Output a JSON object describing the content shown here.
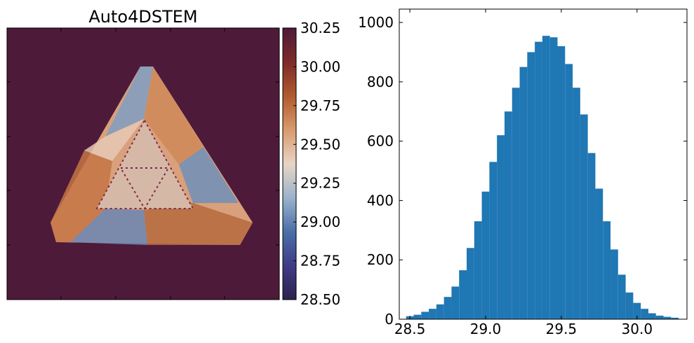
{
  "chart_data": [
    {
      "type": "heatmap",
      "title": "Auto4DSTEM",
      "xlabel": "",
      "ylabel": "",
      "colorbar": {
        "range": [
          28.5,
          30.25
        ],
        "ticks": [
          28.5,
          28.75,
          29.0,
          29.25,
          29.5,
          29.75,
          30.0,
          30.25
        ],
        "tick_labels": [
          "28.50",
          "28.75",
          "29.00",
          "29.25",
          "29.50",
          "29.75",
          "30.00",
          "30.25"
        ],
        "colormap": [
          "#2e214d",
          "#3f3c87",
          "#4a6fa8",
          "#9bb3cc",
          "#e8d5c5",
          "#d99a6c",
          "#b05a2e",
          "#7d2a2a",
          "#4e1a3a"
        ]
      },
      "background_color": "#4e1a3a",
      "grid": false
    },
    {
      "type": "bar",
      "title": "",
      "xlabel": "",
      "ylabel": "",
      "xlim": [
        28.43,
        30.33
      ],
      "ylim": [
        0,
        1045
      ],
      "x_ticks": [
        28.5,
        29.0,
        29.5,
        30.0
      ],
      "x_tick_labels": [
        "28.5",
        "29.0",
        "29.5",
        "30.0"
      ],
      "y_ticks": [
        0,
        200,
        400,
        600,
        800,
        1000
      ],
      "y_tick_labels": [
        "0",
        "200",
        "400",
        "600",
        "800",
        "1000"
      ],
      "bar_color": "#1f77b4",
      "grid": false,
      "x": [
        28.5,
        28.55,
        28.6,
        28.65,
        28.7,
        28.75,
        28.8,
        28.85,
        28.9,
        28.95,
        29.0,
        29.05,
        29.1,
        29.15,
        29.2,
        29.25,
        29.3,
        29.35,
        29.4,
        29.45,
        29.5,
        29.55,
        29.6,
        29.65,
        29.7,
        29.75,
        29.8,
        29.85,
        29.9,
        29.95,
        30.0,
        30.05,
        30.1,
        30.15,
        30.2,
        30.25
      ],
      "values": [
        10,
        15,
        25,
        35,
        50,
        75,
        110,
        165,
        240,
        330,
        430,
        530,
        620,
        700,
        780,
        850,
        900,
        935,
        955,
        950,
        920,
        860,
        780,
        690,
        560,
        440,
        330,
        235,
        150,
        90,
        55,
        35,
        20,
        12,
        8,
        5
      ]
    }
  ]
}
